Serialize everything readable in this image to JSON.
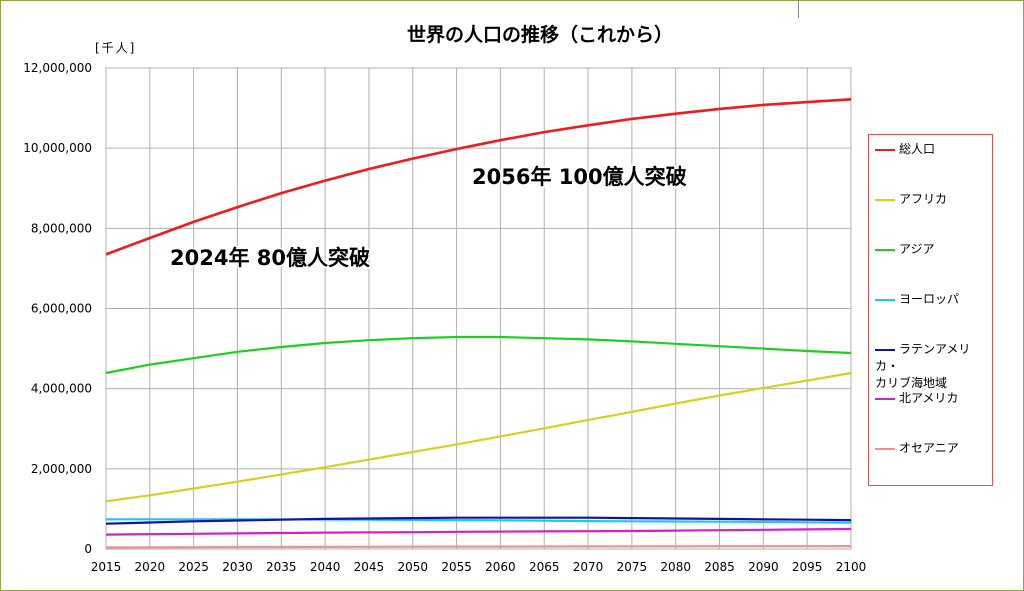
{
  "chart_data": {
    "type": "line",
    "title": "世界の人口の推移（これから）",
    "ylabel": "[千人]",
    "xlim": [
      2015,
      2100
    ],
    "ylim": [
      0,
      12000000
    ],
    "x_ticks": [
      "2015",
      "2020",
      "2025",
      "2030",
      "2035",
      "2040",
      "2045",
      "2050",
      "2055",
      "2060",
      "2065",
      "2070",
      "2075",
      "2080",
      "2085",
      "2090",
      "2095",
      "2100"
    ],
    "y_ticks": [
      "0",
      "2,000,000",
      "4,000,000",
      "6,000,000",
      "8,000,000",
      "10,000,000",
      "12,000,000"
    ],
    "grid": true,
    "legend_position": "right",
    "annotations": [
      {
        "text": "2024年 80億人突破"
      },
      {
        "text": "2056年 100億人突破"
      }
    ],
    "x": [
      2015,
      2020,
      2025,
      2030,
      2035,
      2040,
      2045,
      2050,
      2055,
      2060,
      2065,
      2070,
      2075,
      2080,
      2085,
      2090,
      2095,
      2100
    ],
    "series": [
      {
        "name": "総人口",
        "color": "#ee1c1c",
        "values": [
          7350000,
          7760000,
          8160000,
          8530000,
          8880000,
          9190000,
          9480000,
          9740000,
          9980000,
          10200000,
          10400000,
          10570000,
          10730000,
          10860000,
          10980000,
          11080000,
          11150000,
          11220000
        ]
      },
      {
        "name": "アフリカ",
        "color": "#d8d020",
        "values": [
          1190000,
          1340000,
          1510000,
          1680000,
          1860000,
          2040000,
          2230000,
          2420000,
          2610000,
          2810000,
          3010000,
          3220000,
          3420000,
          3630000,
          3830000,
          4020000,
          4200000,
          4390000
        ]
      },
      {
        "name": "アジア",
        "color": "#1ed01e",
        "values": [
          4390000,
          4600000,
          4760000,
          4920000,
          5040000,
          5140000,
          5210000,
          5260000,
          5290000,
          5290000,
          5260000,
          5230000,
          5180000,
          5120000,
          5060000,
          5000000,
          4940000,
          4890000
        ]
      },
      {
        "name": "ヨーロッパ",
        "color": "#20c8e0",
        "values": [
          740000,
          740000,
          740000,
          740000,
          740000,
          735000,
          730000,
          725000,
          720000,
          715000,
          705000,
          695000,
          690000,
          685000,
          680000,
          675000,
          665000,
          655000
        ]
      },
      {
        "name": "ラテンアメリカ・カリブ海地域",
        "color": "#1010b0",
        "values": [
          630000,
          660000,
          690000,
          710000,
          730000,
          750000,
          760000,
          770000,
          780000,
          780000,
          780000,
          780000,
          770000,
          760000,
          750000,
          740000,
          730000,
          720000
        ]
      },
      {
        "name": "北アメリカ",
        "color": "#d020d0",
        "values": [
          360000,
          370000,
          380000,
          390000,
          400000,
          410000,
          415000,
          420000,
          430000,
          435000,
          440000,
          445000,
          450000,
          460000,
          470000,
          480000,
          490000,
          500000
        ]
      },
      {
        "name": "オセアニア",
        "color": "#f09090",
        "values": [
          40000,
          43000,
          46000,
          49000,
          51000,
          53000,
          55000,
          57000,
          59000,
          61000,
          63000,
          65000,
          67000,
          68000,
          69000,
          70000,
          71000,
          72000
        ]
      }
    ],
    "legend": [
      {
        "label": "総人口",
        "color": "#ee1c1c"
      },
      {
        "label": "アフリカ",
        "color": "#d8d020"
      },
      {
        "label": "アジア",
        "color": "#1ed01e"
      },
      {
        "label": "ヨーロッパ",
        "color": "#20c8e0"
      },
      {
        "label": "ラテンアメリカ・",
        "label2": "カリブ海地域",
        "color": "#1010b0"
      },
      {
        "label": "北アメリカ",
        "color": "#d020d0"
      },
      {
        "label": "オセアニア",
        "color": "#f09090"
      }
    ]
  }
}
